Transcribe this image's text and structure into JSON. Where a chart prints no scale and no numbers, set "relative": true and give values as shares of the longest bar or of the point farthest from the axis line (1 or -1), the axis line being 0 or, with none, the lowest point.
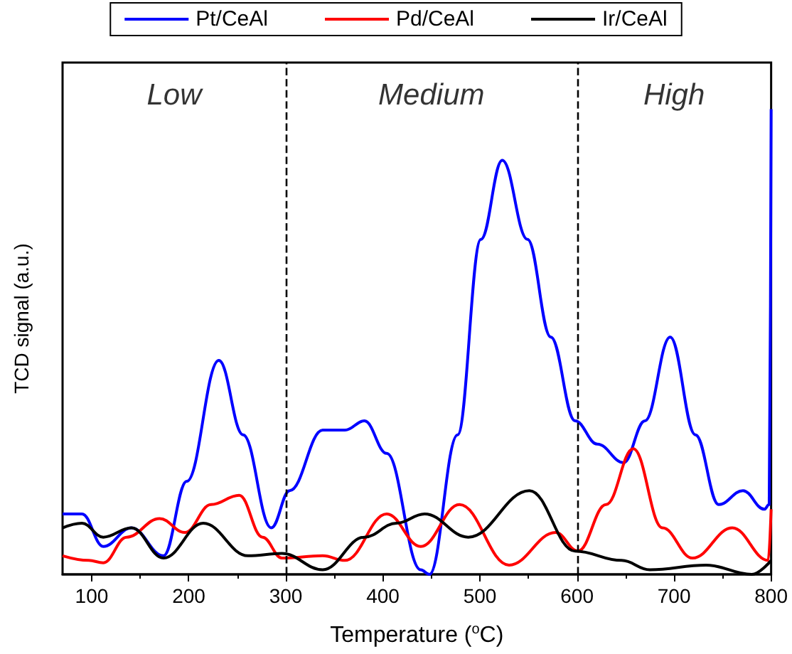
{
  "chart_data": {
    "type": "line",
    "relative": true,
    "xlabel": "Temperature ($^{o}$C)",
    "ylabel": "TCD signal (a.u.)",
    "xlim": [
      70,
      800
    ],
    "xticks": [
      100,
      200,
      300,
      400,
      500,
      600,
      700,
      800
    ],
    "legend": "top",
    "grid": false,
    "marker": "none",
    "line_style": "solid",
    "ref_lines": [
      {
        "axis": "x",
        "value": 300,
        "color": "#000000",
        "line_style": "dashed"
      },
      {
        "axis": "x",
        "value": 600,
        "color": "#000000",
        "line_style": "dashed"
      }
    ],
    "annotations": [
      "Low",
      "Medium",
      "High"
    ],
    "series": [
      {
        "name": "Pt/CeAl",
        "color": "#0000ff",
        "x": [
          70,
          90,
          112,
          141,
          174,
          198,
          231,
          256,
          285,
          304,
          338,
          361,
          381,
          404,
          439,
          448,
          477,
          501,
          523,
          549,
          573,
          598,
          621,
          648,
          670,
          696,
          722,
          746,
          771,
          793,
          798,
          800
        ],
        "values": [
          0.13,
          0.13,
          0.06,
          0.1,
          0.04,
          0.2,
          0.46,
          0.3,
          0.1,
          0.18,
          0.31,
          0.31,
          0.33,
          0.26,
          0.01,
          0,
          0.3,
          0.72,
          0.89,
          0.72,
          0.51,
          0.33,
          0.28,
          0.24,
          0.33,
          0.51,
          0.3,
          0.15,
          0.18,
          0.14,
          0.15,
          1.0
        ]
      },
      {
        "name": "Pd/CeAl",
        "color": "#ff0000",
        "x": [
          70,
          97,
          112,
          136,
          170,
          196,
          223,
          252,
          276,
          296,
          338,
          361,
          404,
          439,
          479,
          530,
          578,
          601,
          630,
          658,
          688,
          719,
          760,
          797,
          800
        ],
        "values": [
          0.04,
          0.03,
          0.025,
          0.08,
          0.12,
          0.09,
          0.15,
          0.17,
          0.08,
          0.035,
          0.04,
          0.03,
          0.13,
          0.06,
          0.15,
          0.02,
          0.09,
          0.05,
          0.15,
          0.27,
          0.1,
          0.035,
          0.1,
          0.03,
          0.14
        ]
      },
      {
        "name": "Ir/CeAl",
        "color": "#000000",
        "x": [
          70,
          90,
          112,
          141,
          174,
          215,
          261,
          296,
          338,
          381,
          414,
          443,
          488,
          551,
          598,
          646,
          675,
          733,
          780,
          800
        ],
        "values": [
          0.1,
          0.11,
          0.08,
          0.1,
          0.035,
          0.11,
          0.04,
          0.045,
          0.01,
          0.08,
          0.11,
          0.13,
          0.08,
          0.18,
          0.05,
          0.03,
          0.01,
          0.02,
          0,
          0.03
        ]
      }
    ]
  }
}
